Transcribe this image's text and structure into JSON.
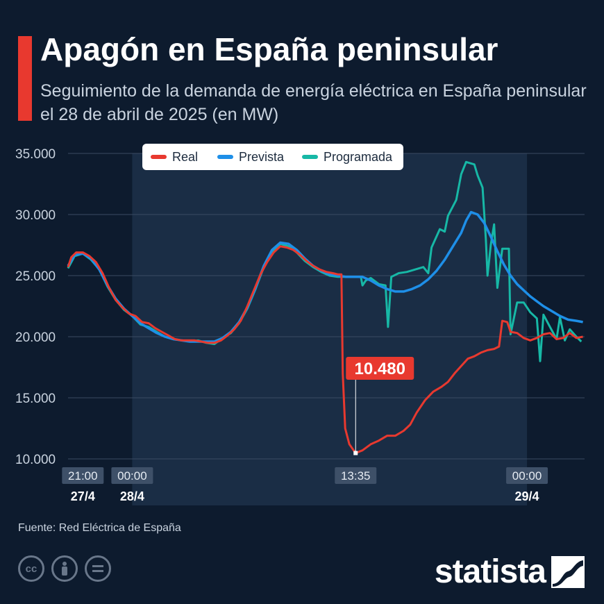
{
  "header": {
    "title": "Apagón en España peninsular",
    "subtitle": "Seguimiento de la demanda de energía eléctrica en España peninsular el 28 de abril de 2025 (en MW)"
  },
  "footer": {
    "source": "Fuente: Red Eléctrica de España",
    "brand": "statista",
    "license_icons": [
      "cc-icon",
      "person-icon",
      "equals-icon"
    ]
  },
  "colors": {
    "background": "#0d1b2e",
    "highlight_band": "#1a2d45",
    "accent": "#e8392f",
    "real": "#e8392f",
    "prevista": "#1e8fe8",
    "programada": "#17b8a6"
  },
  "chart_data": {
    "type": "line",
    "title": "Apagón en España peninsular",
    "ylabel": "",
    "xlabel": "",
    "ylim": [
      10000,
      35000
    ],
    "xlim_hours": [
      -3.9,
      27.5
    ],
    "y_ticks": [
      10000,
      15000,
      20000,
      25000,
      30000,
      35000
    ],
    "y_tick_labels": [
      "10.000",
      "15.000",
      "20.000",
      "25.000",
      "30.000",
      "35.000"
    ],
    "grid": true,
    "legend_position": "top",
    "x_tick_labels": [
      {
        "hour": -3,
        "time": "21:00",
        "date": "27/4"
      },
      {
        "hour": 0,
        "time": "00:00",
        "date": "28/4"
      },
      {
        "hour": 13.583,
        "time": "13:35",
        "date": ""
      },
      {
        "hour": 24,
        "time": "00:00",
        "date": "29/4"
      }
    ],
    "highlight_range_hours": [
      0,
      24
    ],
    "annotation": {
      "hour": 13.583,
      "value": 10480,
      "label": "10.480"
    },
    "series": [
      {
        "name": "Real",
        "color": "#e8392f",
        "points": [
          [
            -3.9,
            25700
          ],
          [
            -3.7,
            26500
          ],
          [
            -3.4,
            26900
          ],
          [
            -3.0,
            26900
          ],
          [
            -2.6,
            26600
          ],
          [
            -2.2,
            26100
          ],
          [
            -1.8,
            25200
          ],
          [
            -1.4,
            24000
          ],
          [
            -1.0,
            23000
          ],
          [
            -0.6,
            22400
          ],
          [
            -0.2,
            21900
          ],
          [
            0.2,
            21700
          ],
          [
            0.6,
            21200
          ],
          [
            1.0,
            21100
          ],
          [
            1.4,
            20700
          ],
          [
            1.8,
            20400
          ],
          [
            2.2,
            20100
          ],
          [
            2.6,
            19800
          ],
          [
            3.0,
            19700
          ],
          [
            3.4,
            19700
          ],
          [
            3.8,
            19700
          ],
          [
            4.2,
            19600
          ],
          [
            4.6,
            19500
          ],
          [
            5.0,
            19500
          ],
          [
            5.4,
            19700
          ],
          [
            5.8,
            20100
          ],
          [
            6.2,
            20600
          ],
          [
            6.6,
            21300
          ],
          [
            7.0,
            22500
          ],
          [
            7.4,
            23800
          ],
          [
            7.8,
            25100
          ],
          [
            8.2,
            26100
          ],
          [
            8.6,
            26900
          ],
          [
            9.0,
            27400
          ],
          [
            9.4,
            27300
          ],
          [
            9.8,
            27100
          ],
          [
            10.2,
            26700
          ],
          [
            10.6,
            26200
          ],
          [
            11.0,
            25800
          ],
          [
            11.4,
            25500
          ],
          [
            11.8,
            25300
          ],
          [
            12.2,
            25200
          ],
          [
            12.5,
            25100
          ],
          [
            12.72,
            25100
          ],
          [
            12.8,
            17000
          ],
          [
            12.95,
            12500
          ],
          [
            13.2,
            11200
          ],
          [
            13.583,
            10480
          ],
          [
            14.0,
            10700
          ],
          [
            14.5,
            11200
          ],
          [
            15.0,
            11500
          ],
          [
            15.5,
            11900
          ],
          [
            16.0,
            11900
          ],
          [
            16.5,
            12300
          ],
          [
            16.9,
            12800
          ],
          [
            17.3,
            13800
          ],
          [
            17.8,
            14800
          ],
          [
            18.3,
            15500
          ],
          [
            18.8,
            15900
          ],
          [
            19.2,
            16300
          ],
          [
            19.6,
            17000
          ],
          [
            20.0,
            17600
          ],
          [
            20.4,
            18200
          ],
          [
            20.8,
            18400
          ],
          [
            21.2,
            18700
          ],
          [
            21.6,
            18900
          ],
          [
            22.0,
            19000
          ],
          [
            22.3,
            19200
          ],
          [
            22.5,
            21300
          ],
          [
            22.8,
            21200
          ],
          [
            23.0,
            20400
          ],
          [
            23.4,
            20300
          ],
          [
            23.8,
            19900
          ],
          [
            24.2,
            19700
          ],
          [
            24.6,
            19900
          ],
          [
            25.0,
            20200
          ],
          [
            25.4,
            20300
          ],
          [
            25.8,
            19800
          ],
          [
            26.2,
            19900
          ],
          [
            26.6,
            20300
          ],
          [
            27.0,
            19900
          ],
          [
            27.4,
            20000
          ]
        ]
      },
      {
        "name": "Prevista",
        "color": "#1e8fe8",
        "points": [
          [
            -3.9,
            25800
          ],
          [
            -3.5,
            26700
          ],
          [
            -3.0,
            26800
          ],
          [
            -2.5,
            26400
          ],
          [
            -2.0,
            25500
          ],
          [
            -1.5,
            24200
          ],
          [
            -1.0,
            23100
          ],
          [
            -0.5,
            22300
          ],
          [
            0.0,
            21700
          ],
          [
            0.5,
            21100
          ],
          [
            1.0,
            20700
          ],
          [
            1.5,
            20300
          ],
          [
            2.0,
            20000
          ],
          [
            2.5,
            19800
          ],
          [
            3.0,
            19700
          ],
          [
            3.5,
            19600
          ],
          [
            4.0,
            19600
          ],
          [
            4.5,
            19600
          ],
          [
            5.0,
            19600
          ],
          [
            5.5,
            19900
          ],
          [
            6.0,
            20400
          ],
          [
            6.5,
            21200
          ],
          [
            7.0,
            22400
          ],
          [
            7.5,
            24000
          ],
          [
            8.0,
            25800
          ],
          [
            8.5,
            27100
          ],
          [
            9.0,
            27700
          ],
          [
            9.5,
            27600
          ],
          [
            10.0,
            27100
          ],
          [
            10.5,
            26400
          ],
          [
            11.0,
            25800
          ],
          [
            11.5,
            25400
          ],
          [
            12.0,
            25100
          ],
          [
            12.5,
            25000
          ],
          [
            13.0,
            24900
          ],
          [
            13.5,
            24900
          ],
          [
            14.0,
            24900
          ],
          [
            14.5,
            24600
          ],
          [
            15.0,
            24200
          ],
          [
            15.5,
            23900
          ],
          [
            16.0,
            23700
          ],
          [
            16.5,
            23700
          ],
          [
            17.0,
            23900
          ],
          [
            17.5,
            24200
          ],
          [
            18.0,
            24700
          ],
          [
            18.5,
            25400
          ],
          [
            19.0,
            26300
          ],
          [
            19.5,
            27400
          ],
          [
            20.0,
            28500
          ],
          [
            20.3,
            29500
          ],
          [
            20.6,
            30200
          ],
          [
            21.0,
            30000
          ],
          [
            21.4,
            29300
          ],
          [
            21.8,
            28200
          ],
          [
            22.2,
            27000
          ],
          [
            22.6,
            25900
          ],
          [
            23.0,
            25000
          ],
          [
            23.4,
            24300
          ],
          [
            23.8,
            23800
          ],
          [
            24.2,
            23300
          ],
          [
            24.6,
            22900
          ],
          [
            25.0,
            22500
          ],
          [
            25.5,
            22100
          ],
          [
            26.0,
            21700
          ],
          [
            26.5,
            21400
          ],
          [
            27.0,
            21300
          ],
          [
            27.4,
            21200
          ]
        ]
      },
      {
        "name": "Programada",
        "color": "#17b8a6",
        "points": [
          [
            -3.9,
            25600
          ],
          [
            -3.5,
            26600
          ],
          [
            -3.0,
            26800
          ],
          [
            -2.5,
            26300
          ],
          [
            -2.0,
            25500
          ],
          [
            -1.5,
            24100
          ],
          [
            -1.0,
            23000
          ],
          [
            -0.5,
            22200
          ],
          [
            0.0,
            21700
          ],
          [
            0.5,
            21000
          ],
          [
            1.0,
            20800
          ],
          [
            1.5,
            20400
          ],
          [
            2.0,
            20000
          ],
          [
            2.5,
            19800
          ],
          [
            3.0,
            19700
          ],
          [
            3.5,
            19600
          ],
          [
            4.0,
            19700
          ],
          [
            4.5,
            19500
          ],
          [
            5.0,
            19400
          ],
          [
            5.5,
            19900
          ],
          [
            6.0,
            20300
          ],
          [
            6.5,
            21100
          ],
          [
            7.0,
            22300
          ],
          [
            7.5,
            23900
          ],
          [
            8.0,
            25700
          ],
          [
            8.5,
            26900
          ],
          [
            9.0,
            27600
          ],
          [
            9.5,
            27400
          ],
          [
            10.0,
            26900
          ],
          [
            10.5,
            26200
          ],
          [
            11.0,
            25700
          ],
          [
            11.5,
            25300
          ],
          [
            12.0,
            25000
          ],
          [
            12.5,
            24900
          ],
          [
            13.0,
            24900
          ],
          [
            13.5,
            24900
          ],
          [
            13.9,
            24900
          ],
          [
            14.0,
            24200
          ],
          [
            14.2,
            24600
          ],
          [
            14.5,
            24800
          ],
          [
            15.0,
            24300
          ],
          [
            15.4,
            24200
          ],
          [
            15.55,
            20800
          ],
          [
            15.75,
            24900
          ],
          [
            16.2,
            25200
          ],
          [
            16.7,
            25300
          ],
          [
            17.2,
            25500
          ],
          [
            17.7,
            25700
          ],
          [
            18.0,
            25200
          ],
          [
            18.2,
            27300
          ],
          [
            18.7,
            28800
          ],
          [
            19.0,
            28600
          ],
          [
            19.2,
            29900
          ],
          [
            19.7,
            31200
          ],
          [
            20.0,
            33300
          ],
          [
            20.3,
            34300
          ],
          [
            20.8,
            34100
          ],
          [
            21.0,
            33200
          ],
          [
            21.3,
            32200
          ],
          [
            21.5,
            28000
          ],
          [
            21.6,
            25000
          ],
          [
            21.8,
            27500
          ],
          [
            22.0,
            29200
          ],
          [
            22.2,
            24000
          ],
          [
            22.5,
            27200
          ],
          [
            22.9,
            27200
          ],
          [
            23.0,
            20200
          ],
          [
            23.4,
            22800
          ],
          [
            23.8,
            22800
          ],
          [
            24.2,
            22000
          ],
          [
            24.6,
            21500
          ],
          [
            24.8,
            18000
          ],
          [
            25.0,
            21800
          ],
          [
            25.4,
            20800
          ],
          [
            25.8,
            19800
          ],
          [
            26.0,
            21600
          ],
          [
            26.3,
            19700
          ],
          [
            26.6,
            20600
          ],
          [
            27.0,
            20000
          ],
          [
            27.3,
            19600
          ]
        ]
      }
    ]
  }
}
